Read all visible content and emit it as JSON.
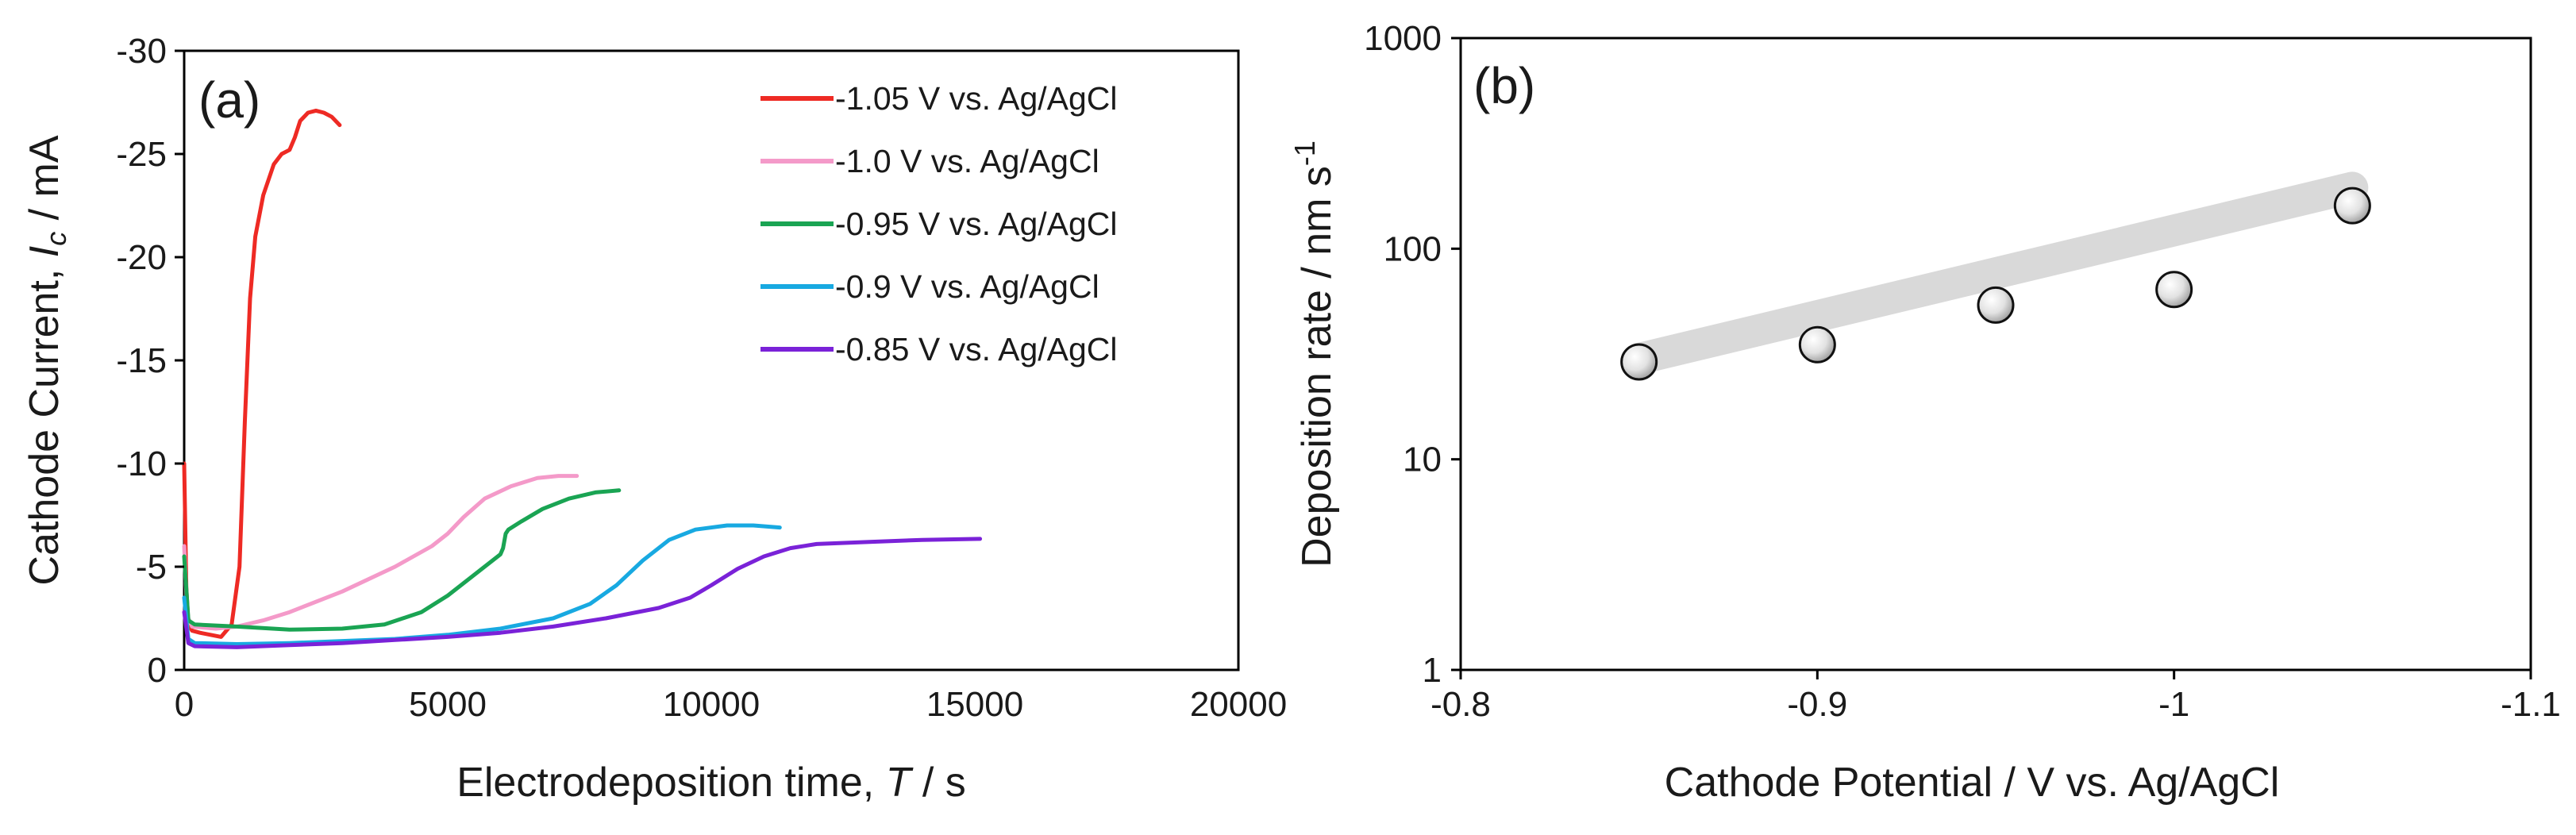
{
  "chart_data": [
    {
      "panel_label": "(a)",
      "type": "line",
      "xlabel": {
        "prefix": "Electrodeposition time, ",
        "symbol": "T",
        "suffix": " / s"
      },
      "ylabel": {
        "prefix": "Cathode Current, ",
        "symbol": "I",
        "subscript": "c",
        "suffix": " / mA"
      },
      "xlim": [
        0,
        20000
      ],
      "ylim": [
        0,
        -30
      ],
      "x_ticks": [
        "0",
        "5000",
        "10000",
        "15000",
        "20000"
      ],
      "x_tick_values": [
        0,
        5000,
        10000,
        15000,
        20000
      ],
      "y_ticks": [
        "-30",
        "-25",
        "-20",
        "-15",
        "-10",
        "-5",
        "0"
      ],
      "y_tick_values": [
        -30,
        -25,
        -20,
        -15,
        -10,
        -5,
        0
      ],
      "grid": false,
      "legend_position": "top-right",
      "series": [
        {
          "name": "-1.05 V vs. Ag/AgCl",
          "color": "#ee2a24",
          "points": [
            [
              0,
              -10
            ],
            [
              40,
              -4
            ],
            [
              80,
              -2.2
            ],
            [
              150,
              -1.9
            ],
            [
              300,
              -1.8
            ],
            [
              500,
              -1.7
            ],
            [
              700,
              -1.6
            ],
            [
              900,
              -2.2
            ],
            [
              1050,
              -5
            ],
            [
              1150,
              -12
            ],
            [
              1250,
              -18
            ],
            [
              1350,
              -21
            ],
            [
              1500,
              -23
            ],
            [
              1700,
              -24.5
            ],
            [
              1850,
              -25
            ],
            [
              2000,
              -25.2
            ],
            [
              2100,
              -25.8
            ],
            [
              2200,
              -26.6
            ],
            [
              2350,
              -27
            ],
            [
              2500,
              -27.1
            ],
            [
              2650,
              -27
            ],
            [
              2800,
              -26.8
            ],
            [
              2950,
              -26.4
            ]
          ]
        },
        {
          "name": "-1.0 V vs. Ag/AgCl",
          "color": "#f49ac9",
          "points": [
            [
              0,
              -6
            ],
            [
              60,
              -2.6
            ],
            [
              150,
              -2.1
            ],
            [
              600,
              -2
            ],
            [
              1000,
              -2.1
            ],
            [
              1500,
              -2.4
            ],
            [
              2000,
              -2.8
            ],
            [
              3000,
              -3.8
            ],
            [
              4000,
              -5
            ],
            [
              4700,
              -6
            ],
            [
              5000,
              -6.6
            ],
            [
              5300,
              -7.4
            ],
            [
              5700,
              -8.3
            ],
            [
              6200,
              -8.9
            ],
            [
              6700,
              -9.3
            ],
            [
              7100,
              -9.4
            ],
            [
              7450,
              -9.4
            ]
          ]
        },
        {
          "name": "-0.95 V vs. Ag/AgCl",
          "color": "#1aa453",
          "points": [
            [
              0,
              -5.5
            ],
            [
              80,
              -2.4
            ],
            [
              200,
              -2.2
            ],
            [
              1000,
              -2.1
            ],
            [
              2000,
              -1.95
            ],
            [
              3000,
              -2
            ],
            [
              3800,
              -2.2
            ],
            [
              4500,
              -2.8
            ],
            [
              5000,
              -3.6
            ],
            [
              5500,
              -4.6
            ],
            [
              6000,
              -5.6
            ],
            [
              6050,
              -5.9
            ],
            [
              6100,
              -6.6
            ],
            [
              6150,
              -6.8
            ],
            [
              6400,
              -7.2
            ],
            [
              6800,
              -7.8
            ],
            [
              7300,
              -8.3
            ],
            [
              7800,
              -8.6
            ],
            [
              8250,
              -8.7
            ]
          ]
        },
        {
          "name": "-0.9 V vs. Ag/AgCl",
          "color": "#18a9e1",
          "points": [
            [
              0,
              -3.5
            ],
            [
              80,
              -1.5
            ],
            [
              200,
              -1.3
            ],
            [
              1000,
              -1.25
            ],
            [
              2000,
              -1.3
            ],
            [
              3000,
              -1.4
            ],
            [
              4000,
              -1.5
            ],
            [
              5000,
              -1.7
            ],
            [
              6000,
              -2
            ],
            [
              7000,
              -2.5
            ],
            [
              7700,
              -3.2
            ],
            [
              8200,
              -4.1
            ],
            [
              8700,
              -5.3
            ],
            [
              9200,
              -6.3
            ],
            [
              9700,
              -6.8
            ],
            [
              10300,
              -7
            ],
            [
              10800,
              -7
            ],
            [
              11300,
              -6.9
            ]
          ]
        },
        {
          "name": "-0.85 V vs. Ag/AgCl",
          "color": "#7a22d8",
          "points": [
            [
              0,
              -2.8
            ],
            [
              80,
              -1.3
            ],
            [
              200,
              -1.15
            ],
            [
              1000,
              -1.1
            ],
            [
              2000,
              -1.2
            ],
            [
              3000,
              -1.3
            ],
            [
              4000,
              -1.45
            ],
            [
              5000,
              -1.6
            ],
            [
              6000,
              -1.8
            ],
            [
              7000,
              -2.1
            ],
            [
              8000,
              -2.5
            ],
            [
              9000,
              -3
            ],
            [
              9600,
              -3.5
            ],
            [
              10000,
              -4.1
            ],
            [
              10500,
              -4.9
            ],
            [
              11000,
              -5.5
            ],
            [
              11500,
              -5.9
            ],
            [
              12000,
              -6.1
            ],
            [
              13000,
              -6.2
            ],
            [
              14000,
              -6.3
            ],
            [
              15100,
              -6.35
            ]
          ]
        }
      ]
    },
    {
      "panel_label": "(b)",
      "type": "scatter",
      "y_scale": "log",
      "xlabel": "Cathode Potential / V vs. Ag/AgCl",
      "ylabel": {
        "prefix": "Deposition rate / nm s",
        "superscript": "-1"
      },
      "xlim": [
        -0.8,
        -1.1
      ],
      "ylim": [
        1,
        1000
      ],
      "x_ticks": [
        "-0.8",
        "-0.9",
        "-1",
        "-1.1"
      ],
      "x_tick_values": [
        -0.8,
        -0.9,
        -1.0,
        -1.1
      ],
      "y_ticks": [
        "1",
        "10",
        "100",
        "1000"
      ],
      "y_tick_values": [
        1,
        10,
        100,
        1000
      ],
      "grid": false,
      "x": [
        -0.85,
        -0.9,
        -0.95,
        -1.0,
        -1.05
      ],
      "values": [
        29,
        35,
        54,
        64,
        160
      ],
      "trend_line": {
        "from": [
          -0.85,
          30
        ],
        "to": [
          -1.05,
          195
        ],
        "color": "#d9d9d9"
      }
    }
  ]
}
